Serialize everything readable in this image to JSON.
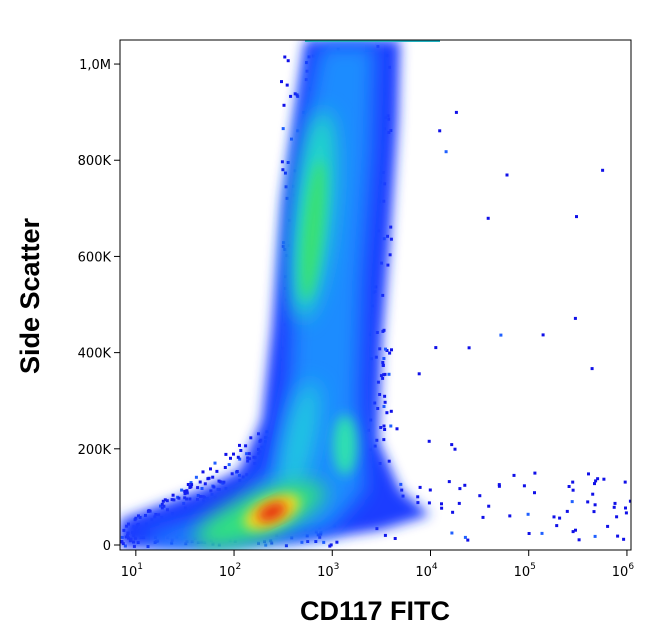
{
  "chart_data": {
    "type": "density",
    "x_label": "CD117 FITC",
    "y_label": "Side Scatter",
    "xscale": "log",
    "xlim": [
      6.9,
      1100000
    ],
    "xticks": [
      {
        "value": 10,
        "label": "10",
        "exponent": "1"
      },
      {
        "value": 100,
        "label": "10",
        "exponent": "2"
      },
      {
        "value": 1000,
        "label": "10",
        "exponent": "3"
      },
      {
        "value": 10000,
        "label": "10",
        "exponent": "4"
      },
      {
        "value": 100000,
        "label": "10",
        "exponent": "5"
      },
      {
        "value": 1000000,
        "label": "10",
        "exponent": "6"
      }
    ],
    "ylim": [
      -10400,
      1050000
    ],
    "yticks": [
      0,
      {
        "value": 200000,
        "label": "200K"
      },
      {
        "value": 400000,
        "label": "400K"
      },
      {
        "value": 600000,
        "label": "600K"
      },
      {
        "value": 800000,
        "label": "800K"
      },
      {
        "value": 1000000,
        "label": "1,0M"
      }
    ]
  }
}
